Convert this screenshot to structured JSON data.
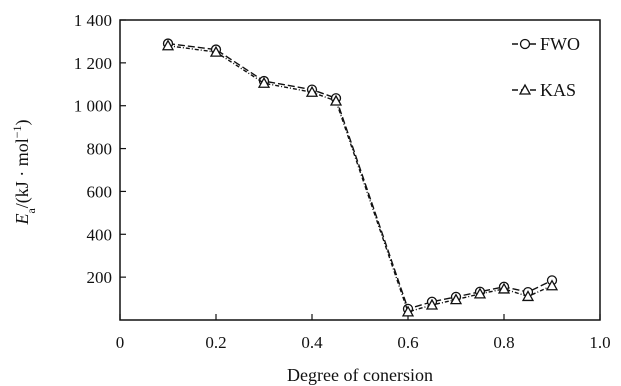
{
  "chart_data": {
    "type": "line",
    "xlabel": "Degree of conersion",
    "ylabel": {
      "base": "E",
      "sub": "a",
      "unit_prefix": "/(kJ · mol",
      "sup": "−1",
      "unit_suffix": ")"
    },
    "xlim": [
      0,
      1.0
    ],
    "ylim": [
      0,
      1400
    ],
    "x_ticks": [
      0,
      0.2,
      0.4,
      0.6,
      0.8,
      1.0
    ],
    "x_tick_labels": [
      "0",
      "0.2",
      "0.4",
      "0.6",
      "0.8",
      "1.0"
    ],
    "y_ticks": [
      200,
      400,
      600,
      800,
      1000,
      1200,
      1400
    ],
    "y_tick_labels": [
      "200",
      "400",
      "600",
      "800",
      "1 000",
      "1 200",
      "1 400"
    ],
    "grid": false,
    "legend_position": "top-right",
    "series": [
      {
        "name": "FWO",
        "marker": "circle",
        "x": [
          0.1,
          0.2,
          0.3,
          0.4,
          0.45,
          0.6,
          0.65,
          0.7,
          0.75,
          0.8,
          0.85,
          0.9
        ],
        "values": [
          1290,
          1262,
          1115,
          1075,
          1035,
          52,
          85,
          108,
          132,
          155,
          130,
          185
        ]
      },
      {
        "name": "KAS",
        "marker": "triangle",
        "x": [
          0.1,
          0.2,
          0.3,
          0.4,
          0.45,
          0.6,
          0.65,
          0.7,
          0.75,
          0.8,
          0.85,
          0.9
        ],
        "values": [
          1280,
          1250,
          1105,
          1063,
          1022,
          38,
          70,
          95,
          122,
          145,
          110,
          160
        ]
      }
    ]
  }
}
